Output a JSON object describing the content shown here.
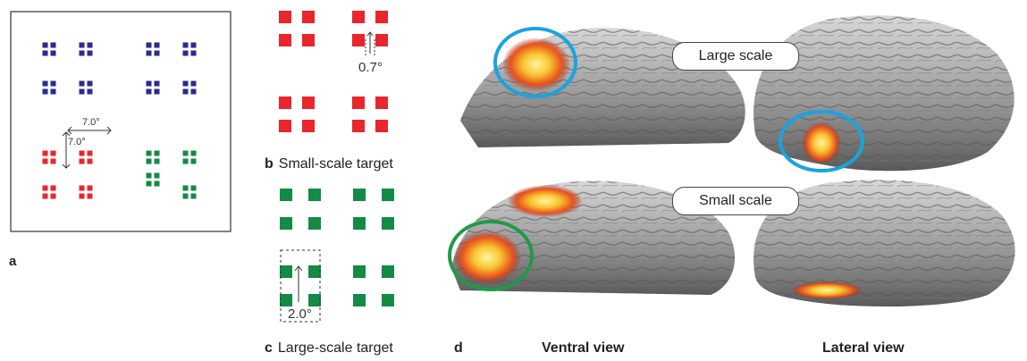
{
  "panel_a": {
    "letter": "a",
    "h_spacing_label": "7.0°",
    "v_spacing_label": "7.0°",
    "colors": {
      "blue": "#2b2b8f",
      "red": "#e8262b",
      "green": "#138a45",
      "frame": "#333333"
    }
  },
  "panel_b": {
    "letter": "b",
    "caption": "Small-scale target",
    "gap_label": "0.7°"
  },
  "panel_c": {
    "letter": "c",
    "caption": "Large-scale target",
    "gap_label": "2.0°"
  },
  "panel_d": {
    "letter": "d",
    "large_scale_label": "Large scale",
    "small_scale_label": "Small scale",
    "ventral_view_label": "Ventral view",
    "lateral_view_label": "Lateral view",
    "colors": {
      "large_circle": "#1aa3e0",
      "small_circle": "#1f9a48",
      "activation": "#f7941d"
    }
  }
}
